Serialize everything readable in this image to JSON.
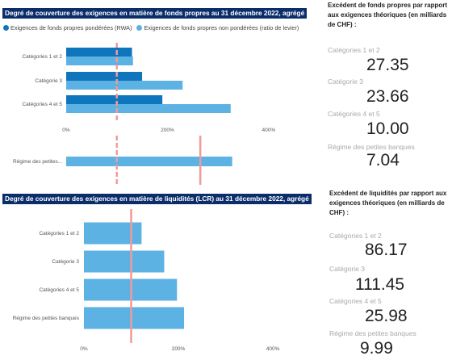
{
  "chart_data": [
    {
      "type": "bar",
      "title": "Degré de couverture des exigences en matière de fonds propres au 31 décembre 2022, agrégé",
      "categories": [
        "Catégories 1 et 2",
        "Catégorie 3",
        "Catégories 4 et 5",
        "Régime des petites..."
      ],
      "series": [
        {
          "name": "Exigences de fonds propres pondérées (RWA)",
          "color": "#0f75bd",
          "values": [
            130,
            150,
            190,
            null
          ]
        },
        {
          "name": "Exigences de fonds propres non pondérées (ratio de levier)",
          "color": "#5cb2e3",
          "values": [
            132,
            230,
            325,
            328
          ]
        }
      ],
      "reference_lines": [
        {
          "value": 100,
          "style": "dashed",
          "color": "#f19a9a"
        },
        {
          "value": 265,
          "style": "solid",
          "color": "#f19a9a",
          "scope": "Régime des petites..."
        }
      ],
      "xticks": [
        "0%",
        "200%",
        "400%"
      ],
      "xlim": [
        0,
        480
      ],
      "legend": "top-left"
    },
    {
      "type": "bar",
      "title": "Degré de couverture des exigences en matière de liquidités (LCR) au 31 décembre 2022, agrégé",
      "categories": [
        "Catégories 1 et 2",
        "Catégorie 3",
        "Catégories 4 et 5",
        "Régime des petites banques"
      ],
      "series": [
        {
          "color": "#5cb2e3",
          "values": [
            122,
            170,
            197,
            212
          ]
        }
      ],
      "reference_lines": [
        {
          "value": 100,
          "style": "solid",
          "color": "#f19a9a"
        }
      ],
      "xticks": [
        "0%",
        "200%",
        "400%"
      ],
      "xlim": [
        0,
        470
      ]
    }
  ],
  "fonds_propres_kpi": {
    "header": "Excédent de fonds propres par rapport aux exigences théoriques (en milliards de CHF) :",
    "items": [
      {
        "label": "Catégories 1 et 2",
        "value": "27.35"
      },
      {
        "label": "Catégorie 3",
        "value": "23.66"
      },
      {
        "label": "Catégories 4 et 5",
        "value": "10.00"
      },
      {
        "label": "Régime des petites banques",
        "value": "7.04"
      }
    ]
  },
  "liquidites_kpi": {
    "header": "Excédent de liquidités par rapport aux exigences théoriques (en milliards de CHF) :",
    "items": [
      {
        "label": "Catégories 1 et 2",
        "value": "86.17"
      },
      {
        "label": "Catégorie 3",
        "value": "111.45"
      },
      {
        "label": "Catégories 4 et 5",
        "value": "25.98"
      },
      {
        "label": "Régime des petites banques",
        "value": "9.99"
      }
    ]
  }
}
